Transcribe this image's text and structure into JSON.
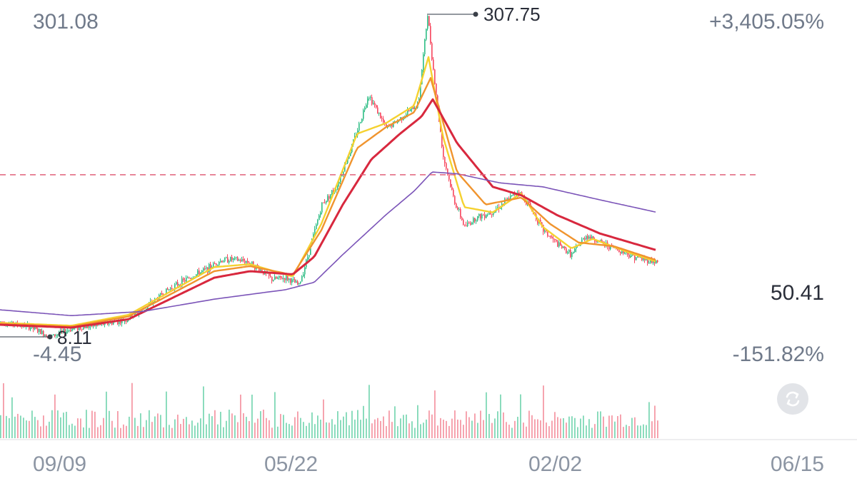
{
  "header": {
    "price_high": "301.08",
    "change_high": "+3,405.05%"
  },
  "footer_scale": {
    "price_low": "-4.45",
    "change_low": "-151.82%"
  },
  "reference_line": {
    "value": 50.41,
    "label": "50.41",
    "color": "#e0607a"
  },
  "x_axis": {
    "dates": [
      "09/09",
      "05/22",
      "02/02",
      "06/15"
    ]
  },
  "controls": {
    "swap_icon": "swap-arrows-icon"
  },
  "colors": {
    "up": "#2ebd85",
    "down": "#f6465d",
    "ma_short": "#f5d130",
    "ma_mid": "#f0942e",
    "ma_long": "#d8283e",
    "ma_xlong": "#7b54b8",
    "grid": "#e8e9ec",
    "annotation": "#555b66"
  },
  "chart_data": {
    "type": "line",
    "title": "",
    "y_range": [
      -4.45,
      301.08
    ],
    "scale": "log",
    "max_point": {
      "value": 307.75,
      "label": "307.75"
    },
    "min_point": {
      "value": 8.11,
      "label": "8.11"
    },
    "price_anchors": [
      [
        0,
        9.6
      ],
      [
        40,
        9.1
      ],
      [
        70,
        8.11
      ],
      [
        100,
        8.9
      ],
      [
        140,
        9.3
      ],
      [
        175,
        9.8
      ],
      [
        200,
        11.0
      ],
      [
        230,
        13.5
      ],
      [
        260,
        15.5
      ],
      [
        290,
        17.5
      ],
      [
        305,
        19.0
      ],
      [
        320,
        19.5
      ],
      [
        345,
        19.0
      ],
      [
        362,
        17.5
      ],
      [
        380,
        15.5
      ],
      [
        400,
        15.8
      ],
      [
        418,
        14.5
      ],
      [
        430,
        20.0
      ],
      [
        450,
        36.0
      ],
      [
        470,
        44.0
      ],
      [
        490,
        66.0
      ],
      [
        505,
        95.0
      ],
      [
        515,
        125.0
      ],
      [
        525,
        108.0
      ],
      [
        540,
        85.0
      ],
      [
        555,
        92.0
      ],
      [
        570,
        102.0
      ],
      [
        585,
        112.0
      ],
      [
        598,
        307.75
      ],
      [
        606,
        165.0
      ],
      [
        620,
        62.0
      ],
      [
        635,
        38.0
      ],
      [
        650,
        28.0
      ],
      [
        665,
        31.0
      ],
      [
        690,
        33.5
      ],
      [
        710,
        38.0
      ],
      [
        725,
        42.0
      ],
      [
        740,
        36.0
      ],
      [
        760,
        27.0
      ],
      [
        780,
        23.0
      ],
      [
        800,
        20.5
      ],
      [
        820,
        25.5
      ],
      [
        840,
        23.5
      ],
      [
        860,
        22.0
      ],
      [
        880,
        20.5
      ],
      [
        900,
        19.5
      ],
      [
        920,
        18.8
      ]
    ],
    "series": [
      {
        "key": "ma_short",
        "anchors": [
          [
            0,
            9.5
          ],
          [
            100,
            9.2
          ],
          [
            180,
            10.4
          ],
          [
            300,
            17.8
          ],
          [
            350,
            18.4
          ],
          [
            410,
            16.0
          ],
          [
            450,
            29.0
          ],
          [
            500,
            80.0
          ],
          [
            540,
            90.0
          ],
          [
            580,
            110.0
          ],
          [
            600,
            190.0
          ],
          [
            620,
            78.0
          ],
          [
            650,
            35.0
          ],
          [
            690,
            33.0
          ],
          [
            730,
            41.0
          ],
          [
            760,
            28.0
          ],
          [
            800,
            22.0
          ],
          [
            830,
            24.5
          ],
          [
            880,
            21.0
          ],
          [
            920,
            18.9
          ]
        ]
      },
      {
        "key": "ma_mid",
        "anchors": [
          [
            0,
            9.4
          ],
          [
            100,
            9.1
          ],
          [
            180,
            10.2
          ],
          [
            300,
            17.0
          ],
          [
            350,
            18.0
          ],
          [
            410,
            16.3
          ],
          [
            450,
            27.0
          ],
          [
            500,
            68.0
          ],
          [
            540,
            86.0
          ],
          [
            580,
            102.0
          ],
          [
            603,
            150.0
          ],
          [
            640,
            52.0
          ],
          [
            680,
            36.0
          ],
          [
            730,
            39.0
          ],
          [
            770,
            29.0
          ],
          [
            810,
            23.5
          ],
          [
            860,
            22.5
          ],
          [
            920,
            19.2
          ]
        ]
      },
      {
        "key": "ma_long",
        "anchors": [
          [
            0,
            9.3
          ],
          [
            100,
            9.0
          ],
          [
            180,
            9.9
          ],
          [
            300,
            15.8
          ],
          [
            350,
            17.0
          ],
          [
            410,
            16.4
          ],
          [
            440,
            20.0
          ],
          [
            480,
            36.0
          ],
          [
            520,
            60.0
          ],
          [
            560,
            80.0
          ],
          [
            590,
            97.0
          ],
          [
            606,
            118.0
          ],
          [
            640,
            72.0
          ],
          [
            690,
            44.0
          ],
          [
            730,
            40.0
          ],
          [
            780,
            32.0
          ],
          [
            840,
            26.0
          ],
          [
            920,
            21.5
          ]
        ]
      },
      {
        "key": "ma_xlong",
        "anchors": [
          [
            0,
            11.0
          ],
          [
            100,
            10.3
          ],
          [
            200,
            10.8
          ],
          [
            300,
            12.4
          ],
          [
            400,
            13.8
          ],
          [
            440,
            15.0
          ],
          [
            480,
            20.5
          ],
          [
            540,
            32.0
          ],
          [
            580,
            42.0
          ],
          [
            605,
            52.0
          ],
          [
            640,
            51.0
          ],
          [
            700,
            46.0
          ],
          [
            760,
            44.0
          ],
          [
            840,
            38.0
          ],
          [
            920,
            33.0
          ]
        ]
      }
    ]
  }
}
